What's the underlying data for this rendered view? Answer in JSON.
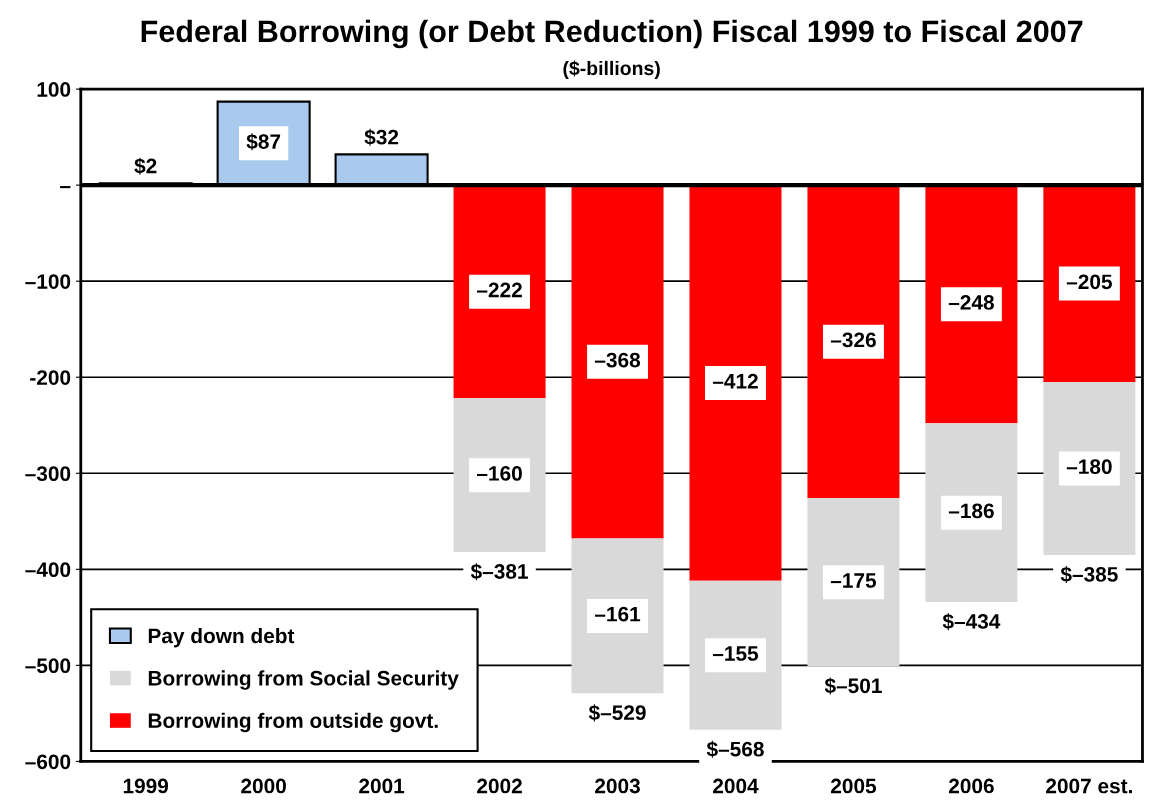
{
  "chart_data": {
    "type": "bar",
    "title": "Federal Borrowing (or Debt Reduction) Fiscal 1999 to Fiscal 2007",
    "subtitle": "($-billions)",
    "categories": [
      "1999",
      "2000",
      "2001",
      "2002",
      "2003",
      "2004",
      "2005",
      "2006",
      "2007 est."
    ],
    "stacked": true,
    "series": [
      {
        "name": "Pay down debt",
        "color": "#a9c9ee",
        "values": [
          2,
          87,
          32,
          null,
          null,
          null,
          null,
          null,
          null
        ],
        "value_labels": [
          "$2",
          "$87",
          "$32",
          null,
          null,
          null,
          null,
          null,
          null
        ]
      },
      {
        "name": "Borrowing from outside govt.",
        "color": "#ff0000",
        "values": [
          null,
          null,
          null,
          -222,
          -368,
          -412,
          -326,
          -248,
          -205
        ],
        "value_labels": [
          null,
          null,
          null,
          "–222",
          "–368",
          "–412",
          "–326",
          "–248",
          "–205"
        ]
      },
      {
        "name": "Borrowing from Social Security",
        "color": "#d9d9d9",
        "values": [
          null,
          null,
          null,
          -160,
          -161,
          -155,
          -175,
          -186,
          -180
        ],
        "value_labels": [
          null,
          null,
          null,
          "–160",
          "–161",
          "–155",
          "–175",
          "–186",
          "–180"
        ]
      }
    ],
    "totals": [
      null,
      null,
      null,
      "$–381",
      "$–529",
      "$–568",
      "$–501",
      "$–434",
      "$–385"
    ],
    "ylim": [
      -600,
      100
    ],
    "yticks": [
      100,
      {
        "value": 0,
        "label": "–"
      },
      {
        "value": -100,
        "label": "–100"
      },
      {
        "value": -200,
        "label": "-200"
      },
      {
        "value": -300,
        "label": "–300"
      },
      {
        "value": -400,
        "label": "–400"
      },
      {
        "value": -500,
        "label": "–500"
      },
      {
        "value": -600,
        "label": "–600"
      }
    ],
    "ref_lines": [
      {
        "axis": "y",
        "value": 0,
        "color": "#000000"
      }
    ],
    "grid": "y",
    "legend": "bottom left"
  }
}
